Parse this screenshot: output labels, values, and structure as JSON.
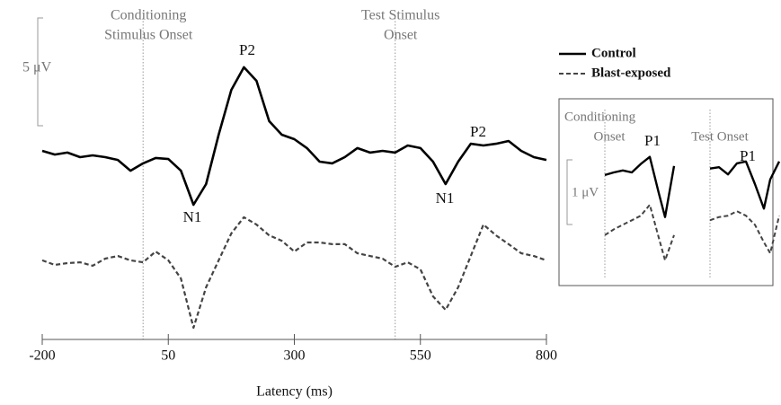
{
  "chart_data": [
    {
      "type": "line",
      "x_label": "Latency (ms)",
      "x": [
        -200,
        -175,
        -150,
        -125,
        -100,
        -75,
        -50,
        -25,
        0,
        25,
        50,
        75,
        100,
        125,
        150,
        175,
        200,
        225,
        250,
        275,
        300,
        325,
        350,
        375,
        400,
        425,
        450,
        475,
        500,
        525,
        550,
        575,
        600,
        625,
        650,
        675,
        700,
        725,
        750,
        775,
        800
      ],
      "xlim": [
        -200,
        800
      ],
      "xticks": [
        -200,
        50,
        300,
        550,
        800
      ],
      "ylim": [
        -8,
        6.5
      ],
      "series": [
        {
          "name": "Control",
          "color": "#000000",
          "dash": false,
          "values": [
            0.5,
            0.33,
            0.42,
            0.21,
            0.29,
            0.21,
            0.08,
            -0.42,
            -0.08,
            0.17,
            0.12,
            -0.42,
            -2.0,
            -1.04,
            1.25,
            3.33,
            4.38,
            3.75,
            1.88,
            1.25,
            1.04,
            0.63,
            0,
            -0.08,
            0.21,
            0.63,
            0.42,
            0.5,
            0.42,
            0.75,
            0.63,
            0,
            -1.04,
            0,
            0.83,
            0.75,
            0.83,
            0.96,
            0.5,
            0.21,
            0.08
          ]
        },
        {
          "name": "Blast-exposed",
          "color": "#444444",
          "dash": true,
          "values": [
            -4.58,
            -4.79,
            -4.71,
            -4.67,
            -4.83,
            -4.5,
            -4.38,
            -4.58,
            -4.67,
            -4.17,
            -4.58,
            -5.42,
            -7.71,
            -5.83,
            -4.58,
            -3.33,
            -2.58,
            -2.92,
            -3.42,
            -3.67,
            -4.17,
            -3.75,
            -3.75,
            -3.83,
            -3.83,
            -4.25,
            -4.38,
            -4.5,
            -4.88,
            -4.67,
            -5.0,
            -6.25,
            -6.88,
            -5.83,
            -4.38,
            -2.92,
            -3.42,
            -3.83,
            -4.25,
            -4.38,
            -4.58
          ]
        }
      ],
      "onsets": [
        {
          "value": 0,
          "label": [
            "Conditioning",
            "Stimulus Onset"
          ]
        },
        {
          "value": 500,
          "label": [
            "Test Stimulus",
            "Onset"
          ]
        }
      ],
      "peak_labels": [
        "P2",
        "N1",
        "P2",
        "N1"
      ],
      "scale_bar": {
        "value": 5,
        "label": "5 μV"
      }
    },
    {
      "type": "line",
      "x": [
        0,
        10,
        20,
        30,
        40,
        50,
        60,
        67,
        77
      ],
      "xlim": [
        0,
        77
      ],
      "ylim": [
        -1.25,
        0.75
      ],
      "scale_bar": {
        "value": 1,
        "label": "1 μV"
      },
      "panels": [
        {
          "label": [
            "Conditioning",
            "Onset"
          ],
          "peak_label": "P1",
          "series": [
            {
              "color": "#000000",
              "dash": false,
              "values": [
                0.21,
                0.25,
                0.28,
                0.25,
                0.38,
                0.49,
                -0.07,
                -0.44,
                0.35
              ]
            },
            {
              "color": "#444444",
              "dash": true,
              "values": [
                -0.72,
                -0.63,
                -0.56,
                -0.49,
                -0.42,
                -0.25,
                -0.76,
                -1.11,
                -0.72
              ]
            }
          ]
        },
        {
          "label": [
            "Test Onset"
          ],
          "peak_label": "P1",
          "series": [
            {
              "color": "#000000",
              "dash": false,
              "values": [
                0.31,
                0.33,
                0.22,
                0.39,
                0.42,
                0.07,
                -0.31,
                0.14,
                0.42
              ]
            },
            {
              "color": "#444444",
              "dash": true,
              "values": [
                -0.49,
                -0.44,
                -0.42,
                -0.35,
                -0.42,
                -0.56,
                -0.83,
                -1.0,
                -0.42
              ]
            }
          ]
        }
      ]
    }
  ]
}
